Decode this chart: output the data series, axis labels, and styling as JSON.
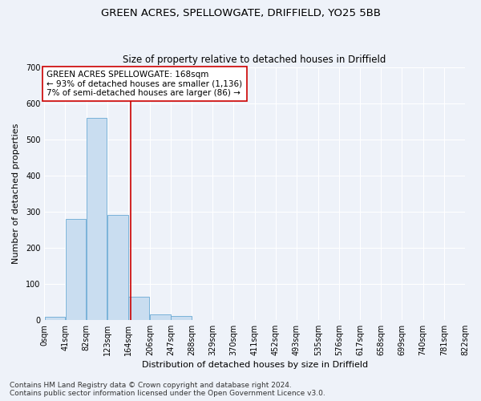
{
  "title_line1": "GREEN ACRES, SPELLOWGATE, DRIFFIELD, YO25 5BB",
  "title_line2": "Size of property relative to detached houses in Driffield",
  "xlabel": "Distribution of detached houses by size in Driffield",
  "ylabel": "Number of detached properties",
  "bin_edges": [
    0,
    41,
    82,
    123,
    164,
    206,
    247,
    288,
    329,
    370,
    411,
    452,
    493,
    535,
    576,
    617,
    658,
    699,
    740,
    781,
    822
  ],
  "bar_heights": [
    8,
    280,
    560,
    290,
    65,
    15,
    10,
    0,
    0,
    0,
    0,
    0,
    0,
    0,
    0,
    0,
    0,
    0,
    0,
    0
  ],
  "bar_color": "#c9ddf0",
  "bar_edge_color": "#6aaad4",
  "property_size": 168,
  "red_line_color": "#cc0000",
  "annotation_line1": "GREEN ACRES SPELLOWGATE: 168sqm",
  "annotation_line2": "← 93% of detached houses are smaller (1,136)",
  "annotation_line3": "7% of semi-detached houses are larger (86) →",
  "annotation_box_color": "#ffffff",
  "annotation_box_edge": "#cc0000",
  "ylim": [
    0,
    700
  ],
  "yticks": [
    0,
    100,
    200,
    300,
    400,
    500,
    600,
    700
  ],
  "background_color": "#eef2f9",
  "plot_background": "#eef2f9",
  "footer_line1": "Contains HM Land Registry data © Crown copyright and database right 2024.",
  "footer_line2": "Contains public sector information licensed under the Open Government Licence v3.0.",
  "title_fontsize": 9.5,
  "subtitle_fontsize": 8.5,
  "axis_label_fontsize": 8,
  "tick_fontsize": 7,
  "annotation_fontsize": 7.5,
  "footer_fontsize": 6.5
}
